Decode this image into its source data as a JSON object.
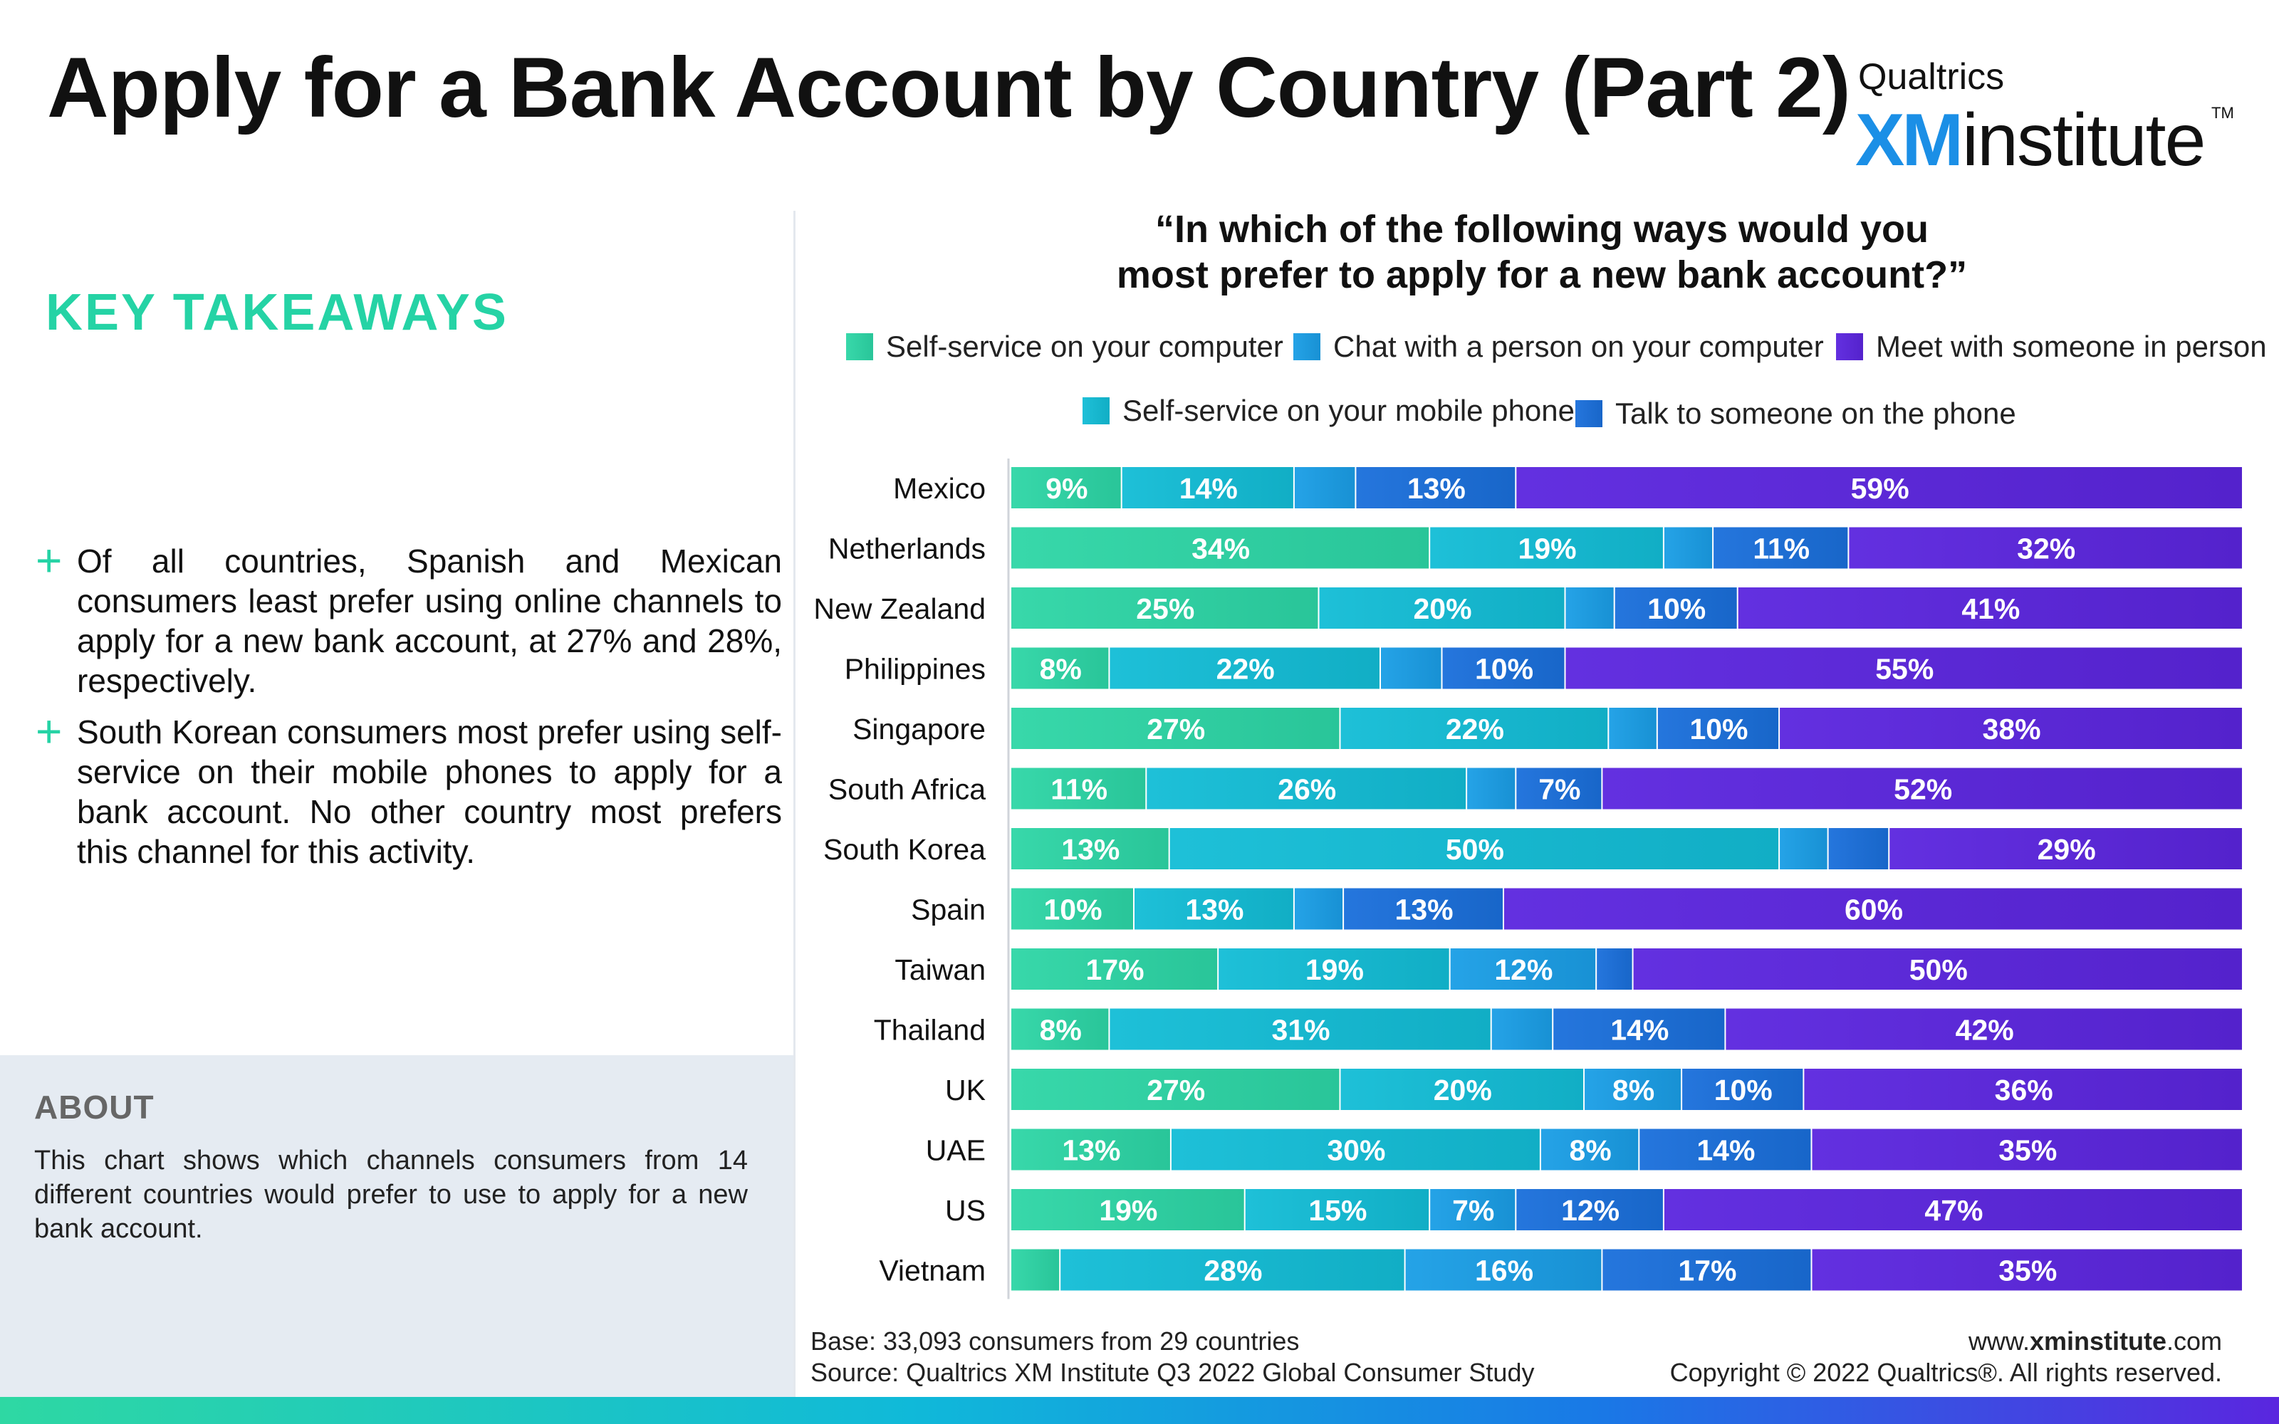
{
  "title": "Apply for a Bank Account by Country (Part 2)",
  "logo": {
    "brand": "Qualtrics",
    "xm": "XM",
    "institute": "institute",
    "tm": "TM"
  },
  "takeaways": {
    "heading": "KEY TAKEAWAYS",
    "items": [
      "Of all countries, Spanish and Mexican consumers least prefer using online channels to apply for a new bank account, at 27% and 28%, respectively.",
      "South Korean consumers most prefer using self-service on their mobile phones to apply for a bank account. No other country most prefers this channel for this activity."
    ]
  },
  "about": {
    "heading": "ABOUT",
    "text": "This chart shows which channels consumers from 14 different countries would prefer to use to apply for a new bank account."
  },
  "footer": {
    "base": "Base: 33,093 consumers from 29 countries",
    "source": "Source: Qualtrics XM Institute Q3 2022 Global Consumer Study",
    "site_prefix": "www.",
    "site_bold": "xminstitute",
    "site_suffix": ".com",
    "copyright": "Copyright © 2022 Qualtrics®. All rights reserved."
  },
  "chart_data": {
    "type": "bar",
    "orientation": "horizontal",
    "stacked": true,
    "title": "“In which of the following ways would you most prefer to apply for a new bank account?”",
    "title_lines": [
      "“In which of the following ways would you",
      "most prefer to apply for a new bank account?”"
    ],
    "categories": [
      "Mexico",
      "Netherlands",
      "New Zealand",
      "Philippines",
      "Singapore",
      "South Africa",
      "South Korea",
      "Spain",
      "Taiwan",
      "Thailand",
      "UK",
      "UAE",
      "US",
      "Vietnam"
    ],
    "series": [
      {
        "name": "Self-service on your computer",
        "color": "#2dd6a6",
        "values": [
          9,
          34,
          25,
          8,
          27,
          11,
          13,
          10,
          17,
          8,
          27,
          13,
          19,
          4
        ]
      },
      {
        "name": "Self-service on your mobile phone",
        "color": "#12bdd6",
        "values": [
          14,
          19,
          20,
          22,
          22,
          26,
          50,
          13,
          19,
          31,
          20,
          30,
          15,
          28
        ]
      },
      {
        "name": "Chat with a person on your computer",
        "color": "#1a9ee6",
        "values": [
          5,
          4,
          4,
          5,
          4,
          4,
          4,
          4,
          12,
          5,
          8,
          8,
          7,
          16
        ]
      },
      {
        "name": "Talk to someone on the phone",
        "color": "#1a6fdb",
        "values": [
          13,
          11,
          10,
          10,
          10,
          7,
          5,
          13,
          3,
          14,
          10,
          14,
          12,
          17
        ]
      },
      {
        "name": "Meet with someone in person",
        "color": "#5b25de",
        "values": [
          59,
          32,
          41,
          55,
          38,
          52,
          29,
          60,
          50,
          42,
          36,
          35,
          47,
          35
        ]
      }
    ],
    "data_labels": [
      [
        "9%",
        "14%",
        "",
        "13%",
        "59%"
      ],
      [
        "34%",
        "19%",
        "",
        "11%",
        "32%"
      ],
      [
        "25%",
        "20%",
        "",
        "10%",
        "41%"
      ],
      [
        "8%",
        "22%",
        "",
        "10%",
        "55%"
      ],
      [
        "27%",
        "22%",
        "",
        "10%",
        "38%"
      ],
      [
        "11%",
        "26%",
        "",
        "7%",
        "52%"
      ],
      [
        "13%",
        "50%",
        "",
        "",
        "29%"
      ],
      [
        "10%",
        "13%",
        "",
        "13%",
        "60%"
      ],
      [
        "17%",
        "19%",
        "12%",
        "",
        "50%"
      ],
      [
        "8%",
        "31%",
        "",
        "14%",
        "42%"
      ],
      [
        "27%",
        "20%",
        "8%",
        "10%",
        "36%"
      ],
      [
        "13%",
        "30%",
        "8%",
        "14%",
        "35%"
      ],
      [
        "19%",
        "15%",
        "7%",
        "12%",
        "47%"
      ],
      [
        "",
        "28%",
        "16%",
        "17%",
        "35%"
      ]
    ],
    "legend_order": [
      [
        "Self-service on your computer",
        "Chat with a person on your computer",
        "Meet with someone in person"
      ],
      [
        "Self-service on your mobile phone",
        "Talk to someone on the phone"
      ]
    ],
    "legend_position": "top",
    "grid": false
  }
}
